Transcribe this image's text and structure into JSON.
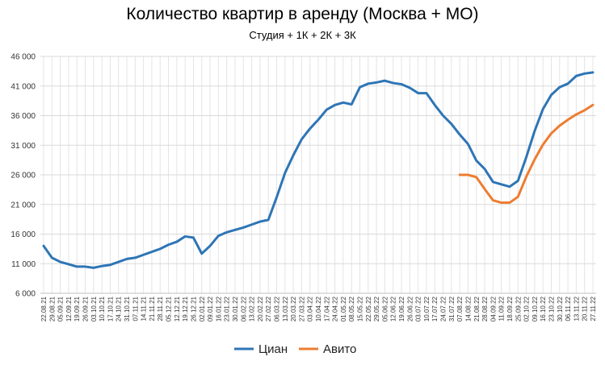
{
  "chart_data": {
    "type": "line",
    "title": "Количество квартир в аренду (Москва + МО)",
    "subtitle": "Студия + 1К + 2К + 3К",
    "xlabel": "",
    "ylabel": "",
    "ylim": [
      6000,
      46000
    ],
    "yticks": [
      6000,
      11000,
      16000,
      21000,
      26000,
      31000,
      36000,
      41000,
      46000
    ],
    "ytick_labels": [
      "6 000",
      "11 000",
      "16 000",
      "21 000",
      "26 000",
      "31 000",
      "36 000",
      "41 000",
      "46 000"
    ],
    "grid": true,
    "legend_position": "bottom",
    "x": [
      "22.08.21",
      "29.08.21",
      "05.09.21",
      "12.09.21",
      "19.09.21",
      "26.09.21",
      "03.10.21",
      "10.10.21",
      "17.10.21",
      "24.10.21",
      "31.10.21",
      "07.11.21",
      "14.11.21",
      "21.11.21",
      "28.11.21",
      "05.12.21",
      "12.12.21",
      "19.12.21",
      "26.12.21",
      "02.01.22",
      "09.01.22",
      "16.01.22",
      "23.01.22",
      "30.01.22",
      "06.02.22",
      "13.02.22",
      "20.02.22",
      "27.02.22",
      "06.03.22",
      "13.03.22",
      "20.03.22",
      "27.03.22",
      "03.04.22",
      "10.04.22",
      "17.04.22",
      "24.04.22",
      "01.05.22",
      "08.05.22",
      "15.05.22",
      "22.05.22",
      "29.05.22",
      "05.06.22",
      "12.06.22",
      "19.06.22",
      "26.06.22",
      "03.07.22",
      "10.07.22",
      "17.07.22",
      "24.07.22",
      "31.07.22",
      "07.08.22",
      "14.08.22",
      "21.08.22",
      "28.08.22",
      "04.09.22",
      "11.09.22",
      "18.09.22",
      "25.09.22",
      "02.10.22",
      "09.10.22",
      "16.10.22",
      "23.10.22",
      "30.10.22",
      "06.11.22",
      "13.11.22",
      "20.11.22",
      "27.11.22"
    ],
    "series": [
      {
        "name": "Циан",
        "color": "#2e75b6",
        "values": [
          14000,
          12000,
          11300,
          10900,
          10500,
          10500,
          10300,
          10600,
          10800,
          11300,
          11800,
          12000,
          12500,
          13000,
          13500,
          14200,
          14700,
          15600,
          15400,
          12700,
          14000,
          15700,
          16300,
          16700,
          17100,
          17600,
          18100,
          18400,
          22200,
          26300,
          29300,
          32000,
          33800,
          35300,
          37000,
          37800,
          38200,
          37900,
          40800,
          41400,
          41600,
          41900,
          41500,
          41300,
          40700,
          39800,
          39800,
          37800,
          36000,
          34600,
          32800,
          31200,
          28400,
          27000,
          24800,
          24400,
          24000,
          25000,
          29000,
          33400,
          37100,
          39500,
          40800,
          41400,
          42700,
          43100,
          43300
        ]
      },
      {
        "name": "Авито",
        "color": "#ed7d31",
        "values": [
          null,
          null,
          null,
          null,
          null,
          null,
          null,
          null,
          null,
          null,
          null,
          null,
          null,
          null,
          null,
          null,
          null,
          null,
          null,
          null,
          null,
          null,
          null,
          null,
          null,
          null,
          null,
          null,
          null,
          null,
          null,
          null,
          null,
          null,
          null,
          null,
          null,
          null,
          null,
          null,
          null,
          null,
          null,
          null,
          null,
          null,
          null,
          null,
          null,
          null,
          26000,
          26000,
          25600,
          23600,
          21700,
          21300,
          21300,
          22300,
          25700,
          28600,
          31100,
          33000,
          34300,
          35300,
          36200,
          36900,
          37800
        ]
      }
    ]
  }
}
